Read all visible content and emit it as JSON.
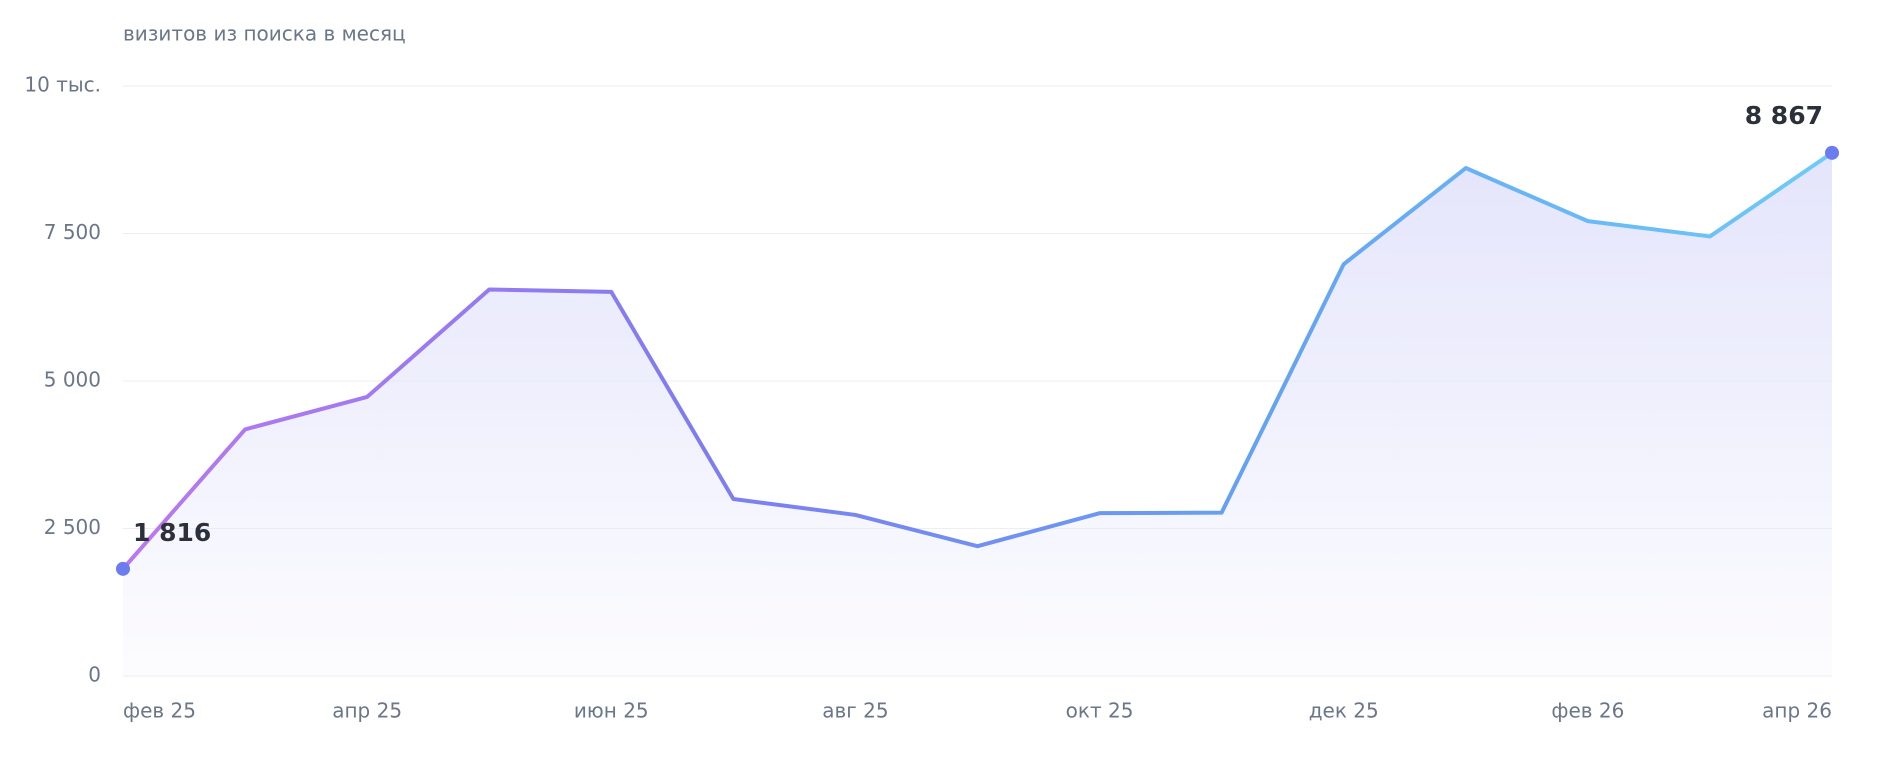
{
  "chart_data": {
    "type": "line",
    "title": "визитов из поиска в месяц",
    "categories": [
      "фев 25",
      null,
      "апр 25",
      null,
      "июн 25",
      null,
      "авг 25",
      null,
      "окт 25",
      null,
      "дек 25",
      null,
      "фев 26",
      null,
      "апр 26"
    ],
    "values": [
      1816,
      4180,
      4730,
      6550,
      6510,
      3000,
      2730,
      2200,
      2760,
      2770,
      6980,
      8610,
      7710,
      7450,
      8867
    ],
    "value_labels": [
      "1 816",
      null,
      null,
      null,
      null,
      null,
      null,
      null,
      null,
      null,
      null,
      null,
      null,
      null,
      "8 867"
    ],
    "line_gradient": [
      "#bb78ef",
      "#7f7cf0",
      "#64a2f2",
      "#6ecbf7"
    ],
    "marker_color": "#6b7bf0",
    "area_color": "#e4e5fb",
    "ylim": [
      0,
      10000
    ],
    "yticks": [
      0,
      {
        "value": 2500,
        "label": "2 500"
      },
      {
        "value": 5000,
        "label": "5 000"
      },
      {
        "value": 7500,
        "label": "7 500"
      },
      {
        "value": 10000,
        "label": "10 тыс."
      }
    ],
    "grid": true
  }
}
